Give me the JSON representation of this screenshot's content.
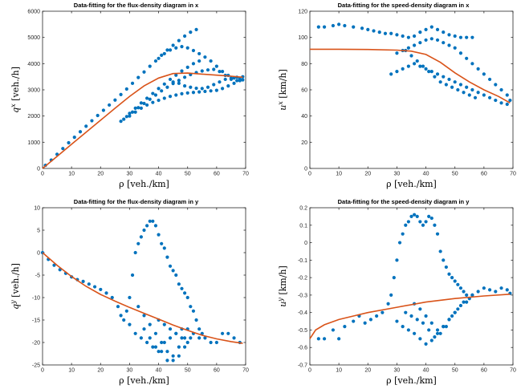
{
  "chart_data": [
    {
      "type": "scatter",
      "title": "Data-fitting for the flux-density diagram in x",
      "xlabel": "ρ [veh./km]",
      "ylabel": "q^x [veh./h]",
      "ylabel_base": "q",
      "ylabel_sup": "x",
      "ylabel_unit": " [veh./h]",
      "xlim": [
        0,
        70
      ],
      "ylim": [
        0,
        6000
      ],
      "xticks": [
        0,
        10,
        20,
        30,
        40,
        50,
        60,
        70
      ],
      "yticks": [
        0,
        1000,
        2000,
        3000,
        4000,
        5000,
        6000
      ],
      "series": [
        {
          "marker": "dots",
          "color": "#0072BD",
          "x": [
            1,
            3,
            5,
            7,
            9,
            11,
            13,
            15,
            17,
            19,
            21,
            23,
            25,
            27,
            29,
            31,
            33,
            35,
            37,
            39,
            41,
            43,
            45,
            47,
            49,
            51,
            53,
            28,
            30,
            32,
            34,
            36,
            38,
            40,
            42,
            44,
            46,
            48,
            50,
            52,
            54,
            27,
            29,
            31,
            33,
            35,
            37,
            39,
            41,
            43,
            45,
            47,
            49,
            51,
            53,
            55,
            57,
            59,
            61,
            63,
            65,
            67,
            69,
            40,
            42,
            44,
            46,
            48,
            50,
            52,
            54,
            56,
            58,
            60,
            62,
            64,
            66,
            68,
            30,
            32,
            34,
            36,
            38,
            40,
            42,
            44,
            46,
            48,
            50,
            52,
            54,
            56,
            58,
            60,
            62,
            64,
            66,
            68,
            45,
            47,
            49,
            51,
            53,
            55,
            57,
            59,
            61,
            63,
            65,
            67,
            69
          ],
          "y": [
            120,
            320,
            540,
            760,
            980,
            1190,
            1400,
            1610,
            1820,
            2020,
            2220,
            2420,
            2610,
            2820,
            3030,
            3250,
            3470,
            3680,
            3900,
            4100,
            4320,
            4520,
            4700,
            4880,
            5050,
            5200,
            5300,
            1880,
            2100,
            2300,
            2500,
            2680,
            2860,
            3050,
            3220,
            3400,
            3560,
            3720,
            3860,
            4000,
            4100,
            1800,
            1980,
            2150,
            2320,
            2480,
            2640,
            2800,
            2960,
            3100,
            3240,
            3360,
            3480,
            3580,
            3660,
            3720,
            3760,
            3780,
            3700,
            3550,
            3400,
            3350,
            3380,
            4200,
            4380,
            4520,
            4600,
            4650,
            4600,
            4500,
            4380,
            4250,
            4100,
            3900,
            3700,
            3550,
            3450,
            3420,
            2000,
            2150,
            2300,
            2420,
            2520,
            2600,
            2680,
            2750,
            2800,
            2850,
            2880,
            2900,
            2920,
            2940,
            2960,
            2980,
            3050,
            3150,
            3250,
            3350,
            3300,
            3250,
            3150,
            3100,
            3060,
            3050,
            3100,
            3200,
            3300,
            3400,
            3450,
            3480,
            3500
          ],
          "trend": [
            [
              0,
              0
            ],
            [
              5,
              460
            ],
            [
              10,
              920
            ],
            [
              15,
              1380
            ],
            [
              20,
              1840
            ],
            [
              25,
              2300
            ],
            [
              30,
              2750
            ],
            [
              35,
              3150
            ],
            [
              40,
              3450
            ],
            [
              45,
              3620
            ],
            [
              50,
              3640
            ],
            [
              55,
              3600
            ],
            [
              60,
              3560
            ],
            [
              65,
              3520
            ],
            [
              69,
              3480
            ]
          ]
        }
      ]
    },
    {
      "type": "scatter",
      "title": "Data-fitting for the speed-density diagram in x",
      "xlabel": "ρ [veh./km]",
      "ylabel": "u^x [km/h]",
      "ylabel_base": "u",
      "ylabel_sup": "x",
      "ylabel_unit": " [km/h]",
      "xlim": [
        0,
        70
      ],
      "ylim": [
        0,
        120
      ],
      "xticks": [
        0,
        10,
        20,
        30,
        40,
        50,
        60,
        70
      ],
      "yticks": [
        0,
        20,
        40,
        60,
        80,
        100,
        120
      ],
      "series": [
        {
          "marker": "dots",
          "color": "#0072BD",
          "x": [
            3,
            5,
            8,
            10,
            12,
            15,
            18,
            20,
            22,
            24,
            26,
            28,
            30,
            32,
            34,
            36,
            38,
            40,
            42,
            44,
            46,
            48,
            50,
            52,
            54,
            56,
            30,
            32,
            34,
            36,
            38,
            40,
            42,
            44,
            46,
            48,
            50,
            52,
            54,
            56,
            58,
            60,
            62,
            64,
            66,
            68,
            69,
            28,
            30,
            32,
            34,
            36,
            38,
            40,
            42,
            44,
            46,
            48,
            50,
            52,
            54,
            56,
            58,
            60,
            62,
            64,
            66,
            68,
            33,
            35,
            37,
            39,
            41,
            43,
            45,
            47,
            49,
            51,
            53,
            55,
            57
          ],
          "y": [
            108,
            108,
            109,
            110,
            109,
            108,
            107,
            106,
            105,
            104,
            103,
            103,
            102,
            101,
            100,
            101,
            104,
            106,
            108,
            106,
            104,
            102,
            101,
            100,
            100,
            100,
            88,
            90,
            92,
            94,
            96,
            98,
            99,
            98,
            96,
            94,
            92,
            88,
            84,
            80,
            76,
            72,
            68,
            64,
            60,
            56,
            52,
            72,
            74,
            76,
            78,
            80,
            78,
            76,
            74,
            72,
            70,
            68,
            66,
            64,
            62,
            60,
            58,
            56,
            54,
            52,
            50,
            49,
            90,
            86,
            82,
            78,
            74,
            70,
            66,
            64,
            62,
            60,
            58,
            56,
            54
          ],
          "trend": [
            [
              0,
              91
            ],
            [
              10,
              91
            ],
            [
              20,
              90.8
            ],
            [
              30,
              90.3
            ],
            [
              35,
              89.5
            ],
            [
              40,
              87
            ],
            [
              45,
              81
            ],
            [
              50,
              73
            ],
            [
              55,
              66
            ],
            [
              60,
              60
            ],
            [
              65,
              55
            ],
            [
              69,
              50
            ]
          ]
        }
      ]
    },
    {
      "type": "scatter",
      "title": "Data-fitting for the flux-density diagram in y",
      "xlabel": "ρ [veh./km]",
      "ylabel": "q^y [veh./h]",
      "ylabel_base": "q",
      "ylabel_sup": "y",
      "ylabel_unit": " [veh./h]",
      "xlim": [
        0,
        70
      ],
      "ylim": [
        -25,
        10
      ],
      "xticks": [
        0,
        10,
        20,
        30,
        40,
        50,
        60,
        70
      ],
      "yticks": [
        -25,
        -20,
        -15,
        -10,
        -5,
        0,
        5,
        10
      ],
      "series": [
        {
          "marker": "dots",
          "color": "#0072BD",
          "x": [
            0,
            2,
            4,
            6,
            8,
            10,
            12,
            14,
            16,
            18,
            20,
            22,
            24,
            26,
            27,
            28,
            29,
            30,
            31,
            32,
            33,
            34,
            35,
            36,
            37,
            38,
            39,
            40,
            41,
            42,
            43,
            44,
            45,
            46,
            47,
            48,
            49,
            50,
            51,
            52,
            53,
            54,
            55,
            30,
            32,
            34,
            36,
            38,
            40,
            42,
            44,
            46,
            48,
            50,
            52,
            54,
            56,
            58,
            60,
            62,
            64,
            66,
            68,
            35,
            37,
            39,
            41,
            43,
            45,
            47,
            49,
            33,
            35,
            37,
            39,
            41,
            43,
            45,
            47,
            49,
            51,
            40,
            42,
            44,
            46,
            48,
            50
          ],
          "y": [
            0,
            -1.5,
            -2.8,
            -3.8,
            -4.6,
            -5.4,
            -6,
            -6.4,
            -7,
            -7.6,
            -8.2,
            -9,
            -10,
            -12,
            -14,
            -15,
            -13,
            -10,
            -5,
            0,
            2,
            3.5,
            5,
            6,
            7,
            7,
            6,
            4,
            2,
            1,
            -1,
            -3,
            -4,
            -5,
            -7,
            -8,
            -9,
            -10,
            -12,
            -13,
            -15,
            -17,
            -18,
            -16,
            -18,
            -19,
            -20,
            -21,
            -22,
            -20,
            -19,
            -18,
            -17,
            -17,
            -18,
            -19,
            -19,
            -20,
            -20,
            -18,
            -18,
            -19,
            -20,
            -17,
            -19,
            -21,
            -22,
            -24,
            -23,
            -21,
            -19,
            -12,
            -14,
            -16,
            -18,
            -20,
            -22,
            -24,
            -23,
            -21,
            -19,
            -15,
            -16,
            -17,
            -18,
            -19,
            -20
          ],
          "trend": [
            [
              0,
              0
            ],
            [
              5,
              -2.8
            ],
            [
              10,
              -5.3
            ],
            [
              15,
              -7.5
            ],
            [
              20,
              -9.3
            ],
            [
              25,
              -10.8
            ],
            [
              30,
              -12.2
            ],
            [
              35,
              -13.5
            ],
            [
              40,
              -14.8
            ],
            [
              45,
              -16.1
            ],
            [
              50,
              -17.3
            ],
            [
              55,
              -18.4
            ],
            [
              60,
              -19.2
            ],
            [
              65,
              -19.8
            ],
            [
              69,
              -20.2
            ]
          ]
        }
      ]
    },
    {
      "type": "scatter",
      "title": "Data-fitting for the speed-density diagram in y",
      "xlabel": "ρ [veh./km]",
      "ylabel": "u^y [km/h]",
      "ylabel_base": "u",
      "ylabel_sup": "y",
      "ylabel_unit": " [km/h]",
      "xlim": [
        0,
        70
      ],
      "ylim": [
        -0.7,
        0.2
      ],
      "xticks": [
        0,
        10,
        20,
        30,
        40,
        50,
        60,
        70
      ],
      "yticks": [
        -0.7,
        -0.6,
        -0.5,
        -0.4,
        -0.3,
        -0.2,
        -0.1,
        0,
        0.1,
        0.2
      ],
      "series": [
        {
          "marker": "dots",
          "color": "#0072BD",
          "x": [
            3,
            5,
            8,
            10,
            12,
            15,
            17,
            19,
            21,
            23,
            25,
            27,
            28,
            29,
            30,
            31,
            32,
            33,
            34,
            35,
            36,
            37,
            38,
            39,
            40,
            41,
            42,
            43,
            44,
            45,
            46,
            47,
            48,
            49,
            50,
            51,
            52,
            53,
            54,
            55,
            56,
            30,
            32,
            34,
            36,
            38,
            40,
            42,
            44,
            46,
            48,
            50,
            52,
            54,
            56,
            58,
            60,
            62,
            64,
            66,
            68,
            69,
            33,
            35,
            37,
            39,
            41,
            43,
            45,
            47,
            49,
            51,
            53,
            36,
            38,
            40,
            42,
            44,
            46,
            48,
            50
          ],
          "y": [
            -0.55,
            -0.55,
            -0.5,
            -0.55,
            -0.48,
            -0.45,
            -0.42,
            -0.46,
            -0.44,
            -0.42,
            -0.4,
            -0.35,
            -0.3,
            -0.2,
            -0.1,
            0,
            0.05,
            0.1,
            0.12,
            0.15,
            0.16,
            0.15,
            0.12,
            0.1,
            0.12,
            0.15,
            0.14,
            0.1,
            0.05,
            -0.05,
            -0.1,
            -0.14,
            -0.18,
            -0.2,
            -0.22,
            -0.24,
            -0.26,
            -0.28,
            -0.3,
            -0.32,
            -0.3,
            -0.45,
            -0.48,
            -0.5,
            -0.52,
            -0.55,
            -0.58,
            -0.56,
            -0.52,
            -0.48,
            -0.44,
            -0.4,
            -0.36,
            -0.34,
            -0.3,
            -0.28,
            -0.26,
            -0.27,
            -0.28,
            -0.26,
            -0.27,
            -0.29,
            -0.4,
            -0.42,
            -0.44,
            -0.46,
            -0.5,
            -0.54,
            -0.52,
            -0.48,
            -0.42,
            -0.38,
            -0.34,
            -0.35,
            -0.38,
            -0.42,
            -0.46,
            -0.5,
            -0.48,
            -0.44,
            -0.4
          ],
          "trend": [
            [
              0,
              -0.55
            ],
            [
              2,
              -0.5
            ],
            [
              5,
              -0.47
            ],
            [
              10,
              -0.44
            ],
            [
              15,
              -0.42
            ],
            [
              20,
              -0.4
            ],
            [
              30,
              -0.37
            ],
            [
              40,
              -0.34
            ],
            [
              50,
              -0.32
            ],
            [
              60,
              -0.305
            ],
            [
              69,
              -0.295
            ]
          ]
        }
      ]
    }
  ]
}
